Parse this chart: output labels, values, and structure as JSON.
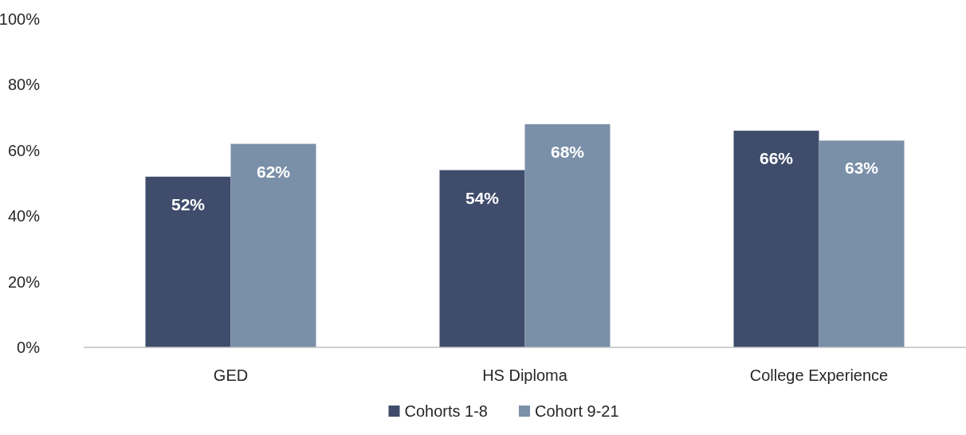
{
  "chart_data": {
    "type": "bar",
    "categories": [
      "GED",
      "HS Diploma",
      "College Experience"
    ],
    "series": [
      {
        "name": "Cohorts 1-8",
        "color": "#3f4c6b",
        "values": [
          52,
          54,
          66
        ],
        "value_labels": [
          "52%",
          "54%",
          "66%"
        ]
      },
      {
        "name": "Cohort 9-21",
        "color": "#7a8fa8",
        "values": [
          62,
          68,
          63
        ],
        "value_labels": [
          "62%",
          "68%",
          "63%"
        ]
      }
    ],
    "ylim": [
      0,
      100
    ],
    "yticks": [
      {
        "value": 0,
        "label": "0%"
      },
      {
        "value": 20,
        "label": "20%"
      },
      {
        "value": 40,
        "label": "40%"
      },
      {
        "value": 60,
        "label": "60%"
      },
      {
        "value": 80,
        "label": "80%"
      },
      {
        "value": 100,
        "label": "100%"
      }
    ],
    "grid": false,
    "legend": "bottom"
  }
}
